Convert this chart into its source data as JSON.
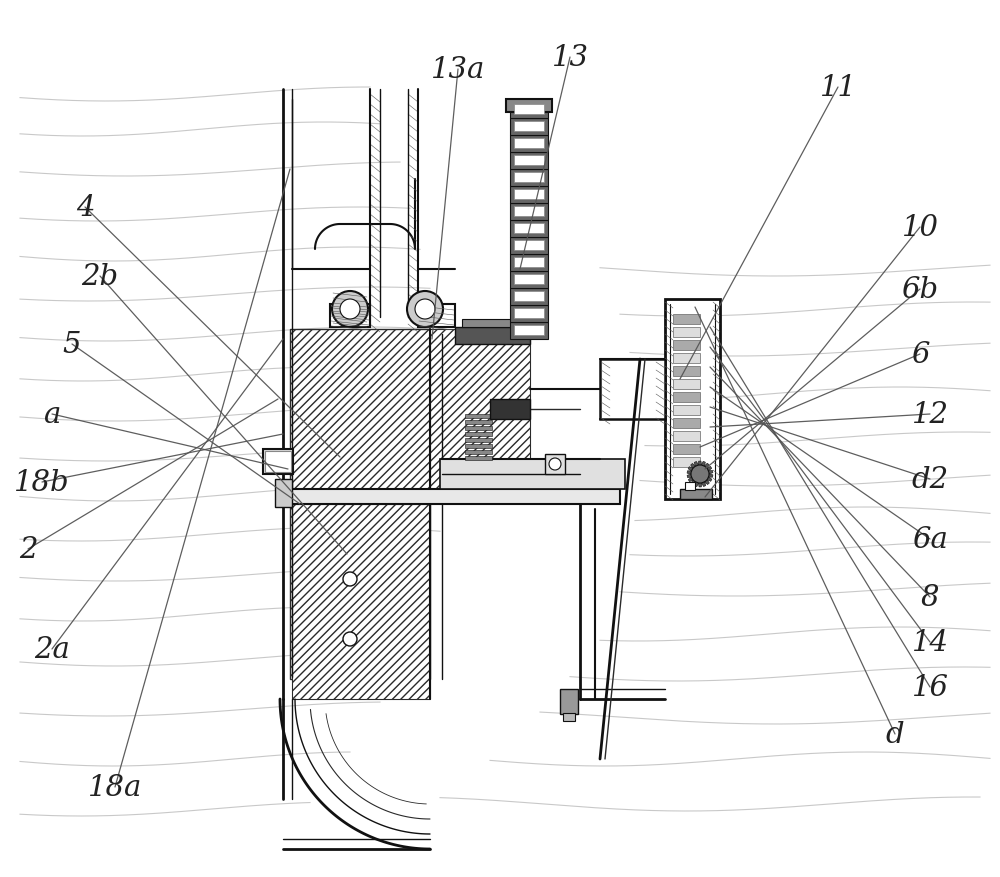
{
  "fig_width": 10.0,
  "fig_height": 8.78,
  "dpi": 100,
  "bg_color": "#ffffff",
  "lc": "#2a2a2a",
  "dc": "#111111",
  "hatch_color": "#555555",
  "gray1": "#888888",
  "gray2": "#cccccc",
  "gray3": "#444444",
  "label_fontsize": 21,
  "label_color": "#222222",
  "leader_color": "#555555",
  "leader_lw": 0.9,
  "labels_info": [
    [
      "4",
      85,
      208,
      340,
      458
    ],
    [
      "2b",
      100,
      277,
      347,
      555
    ],
    [
      "5",
      72,
      345,
      300,
      505
    ],
    [
      "a",
      52,
      415,
      288,
      470
    ],
    [
      "18b",
      42,
      483,
      283,
      435
    ],
    [
      "2",
      28,
      550,
      278,
      400
    ],
    [
      "2a",
      52,
      650,
      283,
      340
    ],
    [
      "18a",
      115,
      788,
      290,
      170
    ],
    [
      "13a",
      458,
      70,
      432,
      340
    ],
    [
      "13",
      570,
      58,
      520,
      270
    ],
    [
      "11",
      838,
      88,
      680,
      380
    ],
    [
      "10",
      920,
      228,
      705,
      498
    ],
    [
      "6b",
      920,
      290,
      705,
      470
    ],
    [
      "6",
      920,
      355,
      700,
      448
    ],
    [
      "12",
      930,
      415,
      710,
      428
    ],
    [
      "d2",
      930,
      480,
      710,
      408
    ],
    [
      "6a",
      930,
      540,
      710,
      388
    ],
    [
      "8",
      930,
      598,
      710,
      368
    ],
    [
      "14",
      930,
      643,
      710,
      348
    ],
    [
      "16",
      930,
      688,
      710,
      328
    ],
    [
      "d",
      895,
      735,
      695,
      308
    ]
  ]
}
